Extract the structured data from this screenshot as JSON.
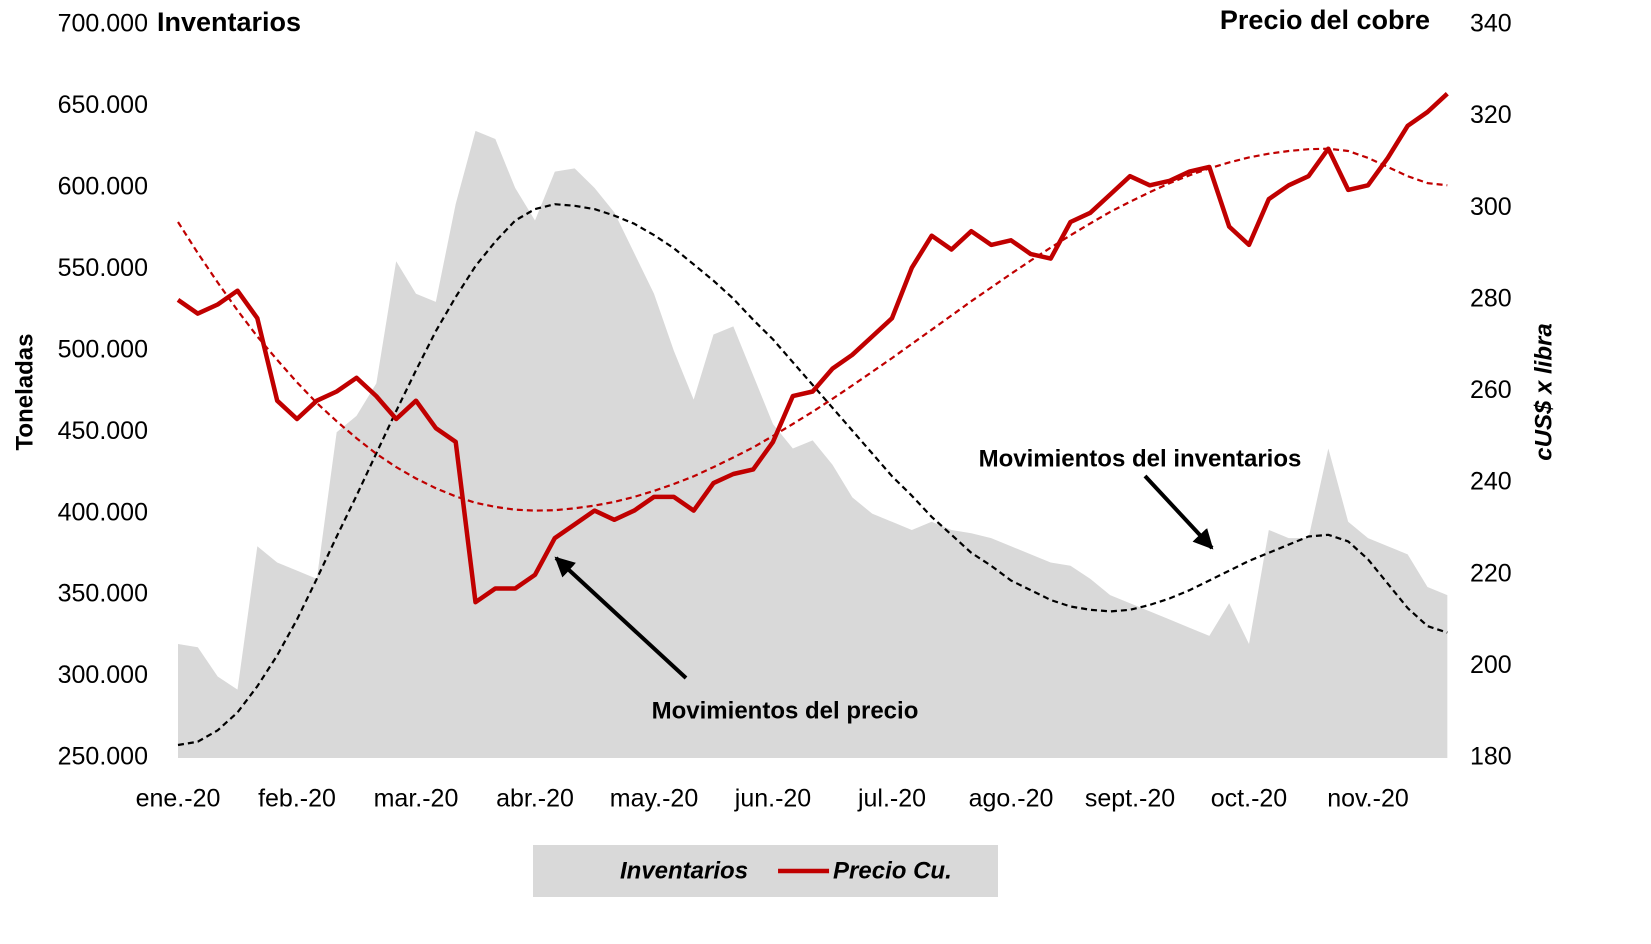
{
  "chart_data": {
    "type": "combo",
    "title": "Inventarios",
    "y2_title": "Precio del cobre",
    "ylabel": "Toneladas",
    "y2label": "cUS$ x libra",
    "annotations": [
      "Movimientos del precio",
      "Movimientos del inventarios"
    ],
    "categories": [
      "ene.-20",
      null,
      null,
      null,
      null,
      null,
      "feb.-20",
      null,
      null,
      null,
      null,
      null,
      "mar.-20",
      null,
      null,
      null,
      null,
      null,
      "abr.-20",
      null,
      null,
      null,
      null,
      null,
      "may.-20",
      null,
      null,
      null,
      null,
      null,
      "jun.-20",
      null,
      null,
      null,
      null,
      null,
      "jul.-20",
      null,
      null,
      null,
      null,
      null,
      "ago.-20",
      null,
      null,
      null,
      null,
      null,
      "sept.-20",
      null,
      null,
      null,
      null,
      null,
      "oct.-20",
      null,
      null,
      null,
      null,
      null,
      "nov.-20",
      null,
      null,
      null,
      null
    ],
    "series": [
      {
        "name": "Inventarios",
        "type": "area",
        "color": "#d9d9d9",
        "axis": "y",
        "values": [
          320000,
          318000,
          300000,
          292000,
          380000,
          370000,
          365000,
          360000,
          450000,
          460000,
          480000,
          555000,
          535000,
          530000,
          590000,
          635000,
          630000,
          600000,
          580000,
          610000,
          612000,
          600000,
          585000,
          560000,
          535000,
          500000,
          470000,
          510000,
          515000,
          485000,
          455000,
          440000,
          445000,
          430000,
          410000,
          400000,
          395000,
          390000,
          395000,
          390000,
          388000,
          385000,
          380000,
          375000,
          370000,
          368000,
          360000,
          350000,
          345000,
          340000,
          335000,
          330000,
          325000,
          345000,
          320000,
          390000,
          385000,
          385000,
          440000,
          395000,
          385000,
          380000,
          375000,
          355000,
          350000
        ]
      },
      {
        "name": "Precio Cu.",
        "type": "line",
        "color": "#c00000",
        "axis": "y2",
        "values": [
          280,
          277,
          279,
          282,
          276,
          258,
          254,
          258,
          260,
          263,
          259,
          254,
          258,
          252,
          249,
          214,
          217,
          217,
          220,
          228,
          231,
          234,
          232,
          234,
          237,
          237,
          234,
          240,
          242,
          243,
          249,
          259,
          260,
          265,
          268,
          272,
          276,
          287,
          294,
          291,
          295,
          292,
          293,
          290,
          289,
          297,
          299,
          303,
          307,
          305,
          306,
          308,
          309,
          296,
          292,
          302,
          305,
          307,
          313,
          304,
          305,
          311,
          318,
          321,
          325
        ]
      },
      {
        "type": "line",
        "dash": true,
        "color": "#000000",
        "axis": "y",
        "values": [
          258000,
          260000,
          267000,
          278000,
          294000,
          313000,
          335000,
          360000,
          386000,
          411000,
          437000,
          463000,
          488000,
          512000,
          533000,
          552000,
          567000,
          580000,
          587000,
          590000,
          589000,
          587000,
          583000,
          578000,
          571000,
          563000,
          553000,
          543000,
          532000,
          519000,
          507000,
          493000,
          479000,
          465000,
          451000,
          437000,
          423000,
          411000,
          398000,
          387000,
          376000,
          368000,
          359000,
          353000,
          347000,
          343000,
          341000,
          340000,
          341000,
          344000,
          348000,
          353000,
          359000,
          365000,
          371000,
          376000,
          381000,
          386000,
          387000,
          383000,
          372000,
          357000,
          342000,
          331000,
          327000
        ]
      },
      {
        "type": "line",
        "dash": true,
        "color": "#c00000",
        "axis": "y2",
        "values": [
          297,
          290.2,
          283.8,
          277.7,
          272,
          266.9,
          262,
          257.5,
          253.5,
          249.8,
          246.4,
          243.5,
          241,
          238.9,
          237.1,
          235.7,
          234.8,
          234.2,
          234,
          234.1,
          234.5,
          235.1,
          235.9,
          237,
          238.3,
          239.8,
          241.5,
          243.5,
          245.6,
          247.8,
          250.3,
          252.9,
          255.6,
          258.4,
          261.3,
          264.3,
          267.3,
          270.4,
          273.5,
          276.6,
          279.7,
          282.7,
          285.7,
          288.6,
          291.4,
          294.1,
          296.7,
          299.2,
          301.4,
          303.5,
          305.5,
          307.2,
          308.7,
          310,
          311.1,
          311.9,
          312.5,
          312.9,
          313,
          312.5,
          311,
          309,
          307,
          305.5,
          305
        ]
      }
    ],
    "ylim": [
      250000,
      700000
    ],
    "yticks": [
      {
        "value": 250000,
        "label": "250.000"
      },
      {
        "value": 300000,
        "label": "300.000"
      },
      {
        "value": 350000,
        "label": "350.000"
      },
      {
        "value": 400000,
        "label": "400.000"
      },
      {
        "value": 450000,
        "label": "450.000"
      },
      {
        "value": 500000,
        "label": "500.000"
      },
      {
        "value": 550000,
        "label": "550.000"
      },
      {
        "value": 600000,
        "label": "600.000"
      },
      {
        "value": 650000,
        "label": "650.000"
      },
      {
        "value": 700000,
        "label": "700.000"
      }
    ],
    "y2lim": [
      180,
      340
    ],
    "y2ticks": [
      180,
      200,
      220,
      240,
      260,
      280,
      300,
      320,
      340
    ],
    "legend": "bottom",
    "legend_background": "#d9d9d9"
  }
}
